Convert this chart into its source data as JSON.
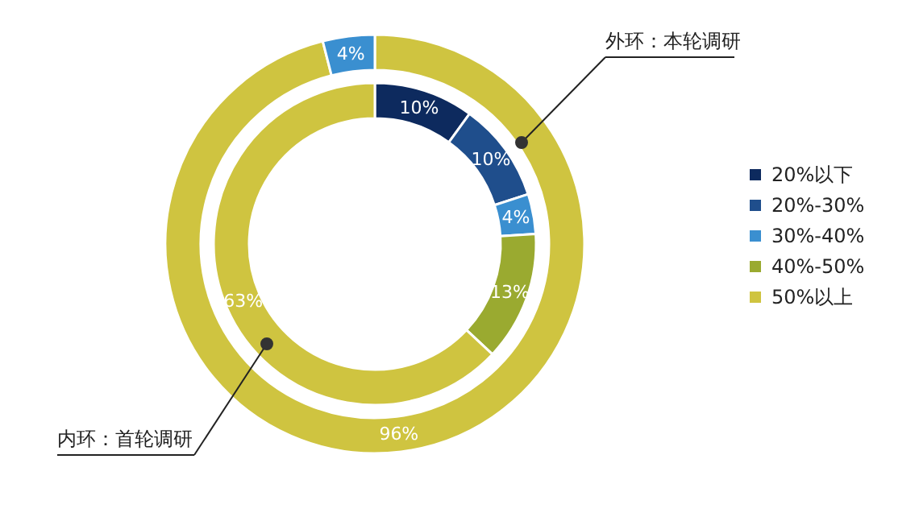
{
  "chart_data": {
    "type": "donut",
    "categories": [
      "20%以下",
      "20%-30%",
      "30%-40%",
      "40%-50%",
      "50%以上"
    ],
    "colors": [
      "#0d2a5e",
      "#1f4e8c",
      "#3a8fd0",
      "#9aaa30",
      "#cfc440"
    ],
    "series": [
      {
        "values": [
          10,
          10,
          4,
          13,
          63
        ],
        "value_labels": [
          "10%",
          "10%",
          "4%",
          "13%",
          "63%"
        ]
      },
      {
        "values": [
          null,
          null,
          4,
          null,
          96
        ],
        "value_labels": [
          null,
          null,
          "4%",
          null,
          "96%"
        ]
      }
    ],
    "legend": "right",
    "annotations": [
      "内环：首轮调研",
      "外环：本轮调研"
    ]
  }
}
